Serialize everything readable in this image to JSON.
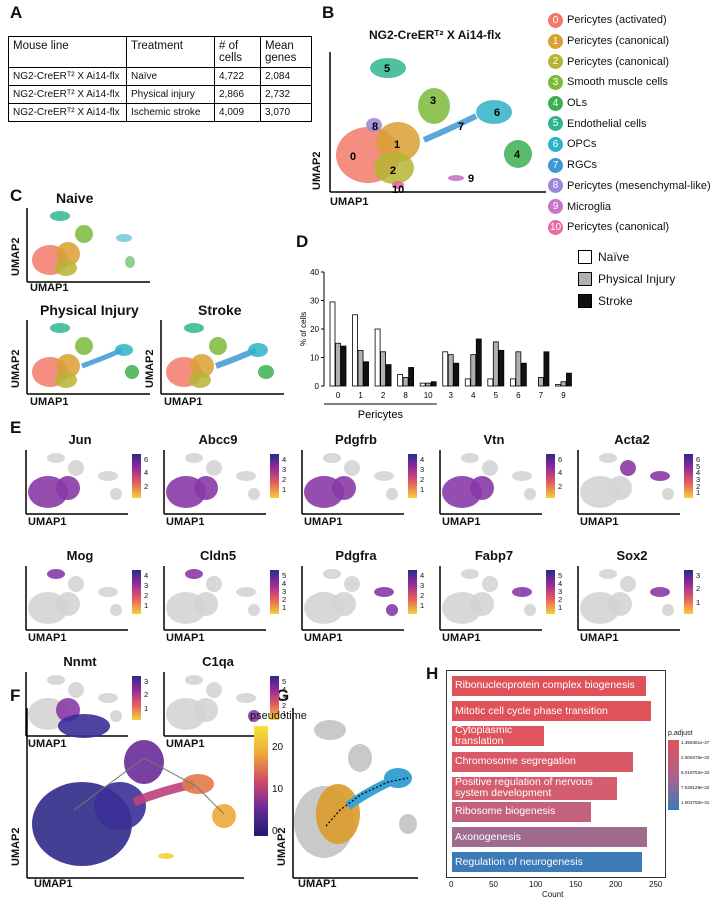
{
  "panels": {
    "A": "A",
    "B": "B",
    "C": "C",
    "D": "D",
    "E": "E",
    "F": "F",
    "G": "G",
    "H": "H"
  },
  "tableA": {
    "headers": [
      "Mouse line",
      "Treatment",
      "# of cells",
      "Mean genes"
    ],
    "rows": [
      [
        "NG2-CreERᵀ² X Ai14-flx",
        "Naïve",
        "4,722",
        "2,084"
      ],
      [
        "NG2-CreERᵀ² X Ai14-flx",
        "Physical injury",
        "2,866",
        "2,732"
      ],
      [
        "NG2-CreERᵀ² X Ai14-flx",
        "Ischemic stroke",
        "4,009",
        "3,070"
      ]
    ]
  },
  "panelB": {
    "title": "NG2-CreERᵀ² X Ai14-flx",
    "xlabel": "UMAP1",
    "ylabel": "UMAP2",
    "legend": [
      {
        "id": "0",
        "label": "Pericytes (activated)",
        "color": "#f27a6b"
      },
      {
        "id": "1",
        "label": "Pericytes (canonical)",
        "color": "#d9a033"
      },
      {
        "id": "2",
        "label": "Pericytes (canonical)",
        "color": "#b6b434"
      },
      {
        "id": "3",
        "label": "Smooth muscle cells",
        "color": "#7cba3b"
      },
      {
        "id": "4",
        "label": "OLs",
        "color": "#3cb04f"
      },
      {
        "id": "5",
        "label": "Endothelial cells",
        "color": "#2fb68f"
      },
      {
        "id": "6",
        "label": "OPCs",
        "color": "#2fb3c7"
      },
      {
        "id": "7",
        "label": "RGCs",
        "color": "#3e98d6"
      },
      {
        "id": "8",
        "label": "Pericytes (mesenchymal-like)",
        "color": "#9b87d9"
      },
      {
        "id": "9",
        "label": "Microglia",
        "color": "#c874c8"
      },
      {
        "id": "10",
        "label": "Pericytes (canonical)",
        "color": "#e86aa1"
      }
    ]
  },
  "panelC": {
    "titles": [
      "Naive",
      "Physical Injury",
      "Stroke"
    ],
    "xlabel": "UMAP1",
    "ylabel": "UMAP2"
  },
  "panelD": {
    "ylabel": "% of cells",
    "group_label": "Pericytes",
    "legend": [
      {
        "name": "Naïve",
        "color": "#ffffff"
      },
      {
        "name": "Physical Injury",
        "color": "#b0b0b0"
      },
      {
        "name": "Stroke",
        "color": "#111111"
      }
    ]
  },
  "chart_data": {
    "type": "bar",
    "categories": [
      "0",
      "1",
      "2",
      "8",
      "10",
      "3",
      "4",
      "5",
      "6",
      "7",
      "9"
    ],
    "series": [
      {
        "name": "Naïve",
        "values": [
          29.5,
          25,
          20,
          4,
          1,
          12,
          2.5,
          2.5,
          2.5,
          0,
          0.5
        ]
      },
      {
        "name": "Physical Injury",
        "values": [
          15,
          12.5,
          12,
          3,
          1,
          11,
          11,
          15.5,
          12,
          3,
          1.5
        ]
      },
      {
        "name": "Stroke",
        "values": [
          14,
          8.5,
          7.5,
          6.5,
          1.5,
          8,
          16.5,
          12.5,
          8,
          12,
          4.5
        ]
      }
    ],
    "ylim": [
      0,
      40
    ],
    "yticks": [
      0,
      10,
      20,
      30,
      40
    ],
    "ylabel": "% of cells"
  },
  "panelE": {
    "genes": [
      {
        "name": "Jun",
        "ticks": [
          "6",
          "4",
          "2"
        ]
      },
      {
        "name": "Abcc9",
        "ticks": [
          "4",
          "3",
          "2",
          "1"
        ]
      },
      {
        "name": "Pdgfrb",
        "ticks": [
          "4",
          "3",
          "2",
          "1"
        ]
      },
      {
        "name": "Vtn",
        "ticks": [
          "6",
          "4",
          "2"
        ]
      },
      {
        "name": "Acta2",
        "ticks": [
          "6",
          "5",
          "4",
          "3",
          "2",
          "1"
        ]
      },
      {
        "name": "Mog",
        "ticks": [
          "4",
          "3",
          "2",
          "1"
        ]
      },
      {
        "name": "Cldn5",
        "ticks": [
          "5",
          "4",
          "3",
          "2",
          "1"
        ]
      },
      {
        "name": "Pdgfra",
        "ticks": [
          "4",
          "3",
          "2",
          "1"
        ]
      },
      {
        "name": "Fabp7",
        "ticks": [
          "5",
          "4",
          "3",
          "2",
          "1"
        ]
      },
      {
        "name": "Sox2",
        "ticks": [
          "3",
          "2",
          "1"
        ]
      },
      {
        "name": "Nnmt",
        "ticks": [
          "3",
          "2",
          "1"
        ]
      },
      {
        "name": "C1qa",
        "ticks": [
          "5",
          "4",
          "3",
          "2",
          "1"
        ]
      }
    ],
    "xlabel": "UMAP1",
    "ylabel": "UMAP2"
  },
  "panelF": {
    "legend_title": "pseudotime",
    "ticks": [
      "20",
      "10",
      "0"
    ],
    "xlabel": "UMAP1",
    "ylabel": "UMAP2"
  },
  "panelG": {
    "xlabel": "UMAP1",
    "ylabel": "UMAP2"
  },
  "panelH": {
    "xlabel": "Count",
    "legend_title": "p.adjust",
    "legend_ticks": [
      "1.358481e-47",
      "2.509376e-32",
      "5.018752e-32",
      "7.528129e-32",
      "1.003750e-31"
    ],
    "xticks": [
      "0",
      "50",
      "100",
      "150",
      "200",
      "250"
    ],
    "terms": [
      {
        "label": "Ribonucleoprotein complex biogenesis",
        "count": 242,
        "color": "#e0525a"
      },
      {
        "label": "Mitotic cell cycle phase transition",
        "count": 249,
        "color": "#e0525a"
      },
      {
        "label": "Cytoplasmic translation",
        "count": 115,
        "color": "#df555d"
      },
      {
        "label": "Chromosome segregation",
        "count": 226,
        "color": "#d95a66"
      },
      {
        "label": "Positive regulation of nervous system development",
        "count": 206,
        "color": "#d45e70"
      },
      {
        "label": "Ribosome biogenesis",
        "count": 174,
        "color": "#c4617c"
      },
      {
        "label": "Axonogenesis",
        "count": 244,
        "color": "#9e6a8e"
      },
      {
        "label": "Regulation of neurogenesis",
        "count": 237,
        "color": "#3d7ab8"
      }
    ]
  }
}
